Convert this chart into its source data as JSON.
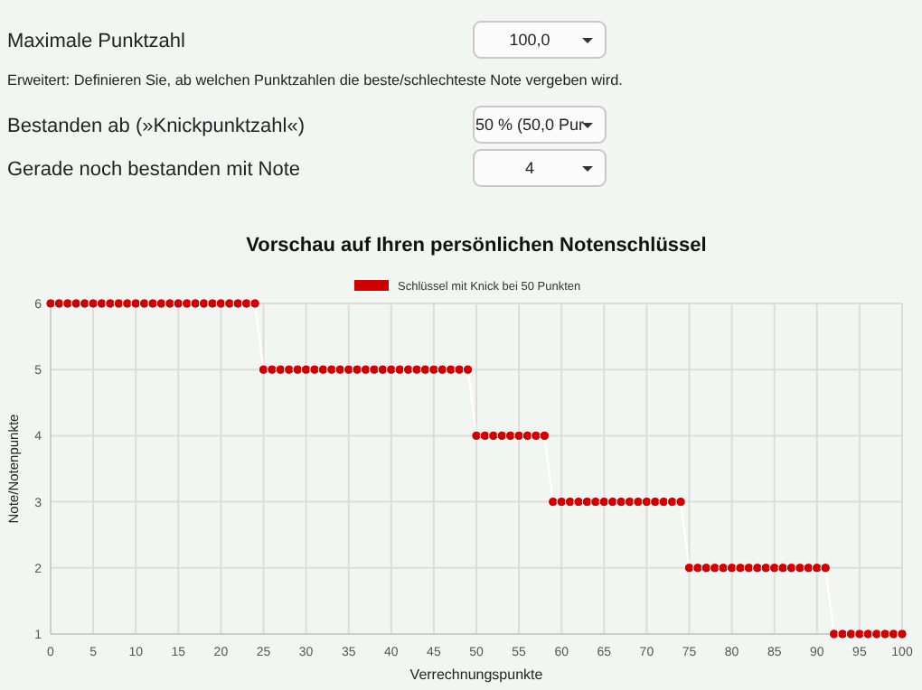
{
  "chart_data": {
    "type": "line",
    "title": "Vorschau auf Ihren persönlichen Notenschlüssel",
    "xlabel": "Verrechnungspunkte",
    "ylabel": "Note/Notenpunkte",
    "x": [
      0,
      1,
      2,
      3,
      4,
      5,
      6,
      7,
      8,
      9,
      10,
      11,
      12,
      13,
      14,
      15,
      16,
      17,
      18,
      19,
      20,
      21,
      22,
      23,
      24,
      25,
      26,
      27,
      28,
      29,
      30,
      31,
      32,
      33,
      34,
      35,
      36,
      37,
      38,
      39,
      40,
      41,
      42,
      43,
      44,
      45,
      46,
      47,
      48,
      49,
      50,
      51,
      52,
      53,
      54,
      55,
      56,
      57,
      58,
      59,
      60,
      61,
      62,
      63,
      64,
      65,
      66,
      67,
      68,
      69,
      70,
      71,
      72,
      73,
      74,
      75,
      76,
      77,
      78,
      79,
      80,
      81,
      82,
      83,
      84,
      85,
      86,
      87,
      88,
      89,
      90,
      91,
      92,
      93,
      94,
      95,
      96,
      97,
      98,
      99,
      100
    ],
    "series": [
      {
        "name": "Schlüssel mit Knick bei 50 Punkten",
        "color": "#cc0000",
        "values": [
          6,
          6,
          6,
          6,
          6,
          6,
          6,
          6,
          6,
          6,
          6,
          6,
          6,
          6,
          6,
          6,
          6,
          6,
          6,
          6,
          6,
          6,
          6,
          6,
          6,
          5,
          5,
          5,
          5,
          5,
          5,
          5,
          5,
          5,
          5,
          5,
          5,
          5,
          5,
          5,
          5,
          5,
          5,
          5,
          5,
          5,
          5,
          5,
          5,
          5,
          4,
          4,
          4,
          4,
          4,
          4,
          4,
          4,
          4,
          3,
          3,
          3,
          3,
          3,
          3,
          3,
          3,
          3,
          3,
          3,
          3,
          3,
          3,
          3,
          3,
          2,
          2,
          2,
          2,
          2,
          2,
          2,
          2,
          2,
          2,
          2,
          2,
          2,
          2,
          2,
          2,
          2,
          1,
          1,
          1,
          1,
          1,
          1,
          1,
          1,
          1
        ]
      }
    ],
    "xlim": [
      0,
      100
    ],
    "xticks": [
      0,
      5,
      10,
      15,
      20,
      25,
      30,
      35,
      40,
      45,
      50,
      55,
      60,
      65,
      70,
      75,
      80,
      85,
      90,
      95,
      100
    ],
    "ylim": [
      1,
      6
    ],
    "yticks": [
      1,
      2,
      3,
      4,
      5,
      6
    ],
    "grid": true,
    "legend": "top",
    "marker": "circle",
    "annotations": [
      "Maximale Punktzahl",
      "100,0",
      "Erweitert: Definieren Sie, ab welchen Punktzahlen die beste/schlechteste Note vergeben wird.",
      "Bestanden ab (»Knickpunktzahl«)",
      "50 % (50,0 Pur",
      "Gerade noch bestanden mit Note",
      "4"
    ]
  }
}
